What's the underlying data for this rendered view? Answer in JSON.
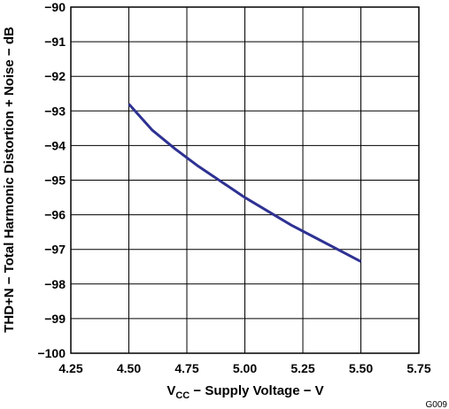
{
  "chart_data": {
    "type": "line",
    "xlabel": {
      "main": "V",
      "sub": "CC",
      "rest": " − Supply Voltage − V"
    },
    "ylabel": "THD+N − Total Harmonic Distortion + Noise − dB",
    "x_ticks": [
      "4.25",
      "4.50",
      "4.75",
      "5.00",
      "5.25",
      "5.50",
      "5.75"
    ],
    "y_ticks": [
      "−90",
      "−91",
      "−92",
      "−93",
      "−94",
      "−95",
      "−96",
      "−97",
      "−98",
      "−99",
      "−100"
    ],
    "xlim": [
      4.25,
      5.75
    ],
    "ylim": [
      -100,
      -90
    ],
    "grid": true,
    "series": [
      {
        "color": "#2e3192",
        "x": [
          4.5,
          4.6,
          4.7,
          4.8,
          4.9,
          5.0,
          5.1,
          5.2,
          5.3,
          5.4,
          5.5
        ],
        "y": [
          -92.8,
          -93.55,
          -94.1,
          -94.6,
          -95.05,
          -95.5,
          -95.9,
          -96.3,
          -96.65,
          -97.0,
          -97.35
        ]
      }
    ],
    "figure_code": "G009"
  }
}
